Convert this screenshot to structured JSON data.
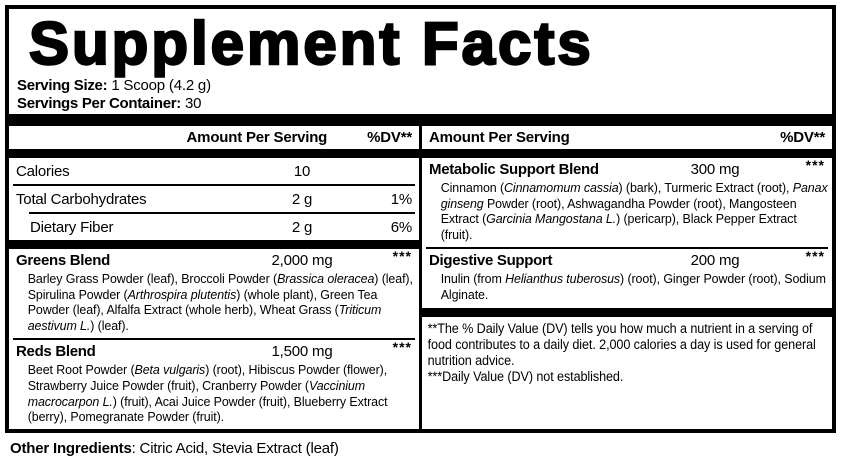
{
  "colors": {
    "ink": "#000000",
    "paper": "#ffffff"
  },
  "title": "Supplement Facts",
  "serving": {
    "size_label": "Serving Size:",
    "size_value": "1 Scoop (4.2 g)",
    "count_label": "Servings Per Container:",
    "count_value": "30"
  },
  "columns": {
    "left": {
      "header": {
        "amount": "Amount Per Serving",
        "dv": "%DV**"
      },
      "nutrients": [
        {
          "name": "Calories",
          "amount": "10",
          "dv": ""
        },
        {
          "name": "Total Carbohydrates",
          "amount": "2 g",
          "dv": "1%"
        },
        {
          "name": "Dietary Fiber",
          "amount": "2 g",
          "dv": "6%"
        }
      ],
      "blends": [
        {
          "name": "Greens Blend",
          "amount": "2,000 mg",
          "dv": "***",
          "ingredients": [
            {
              "text": "Barley Grass Powder (leaf), Broccoli Powder ("
            },
            {
              "text": "Brassica oleracea",
              "italic": true
            },
            {
              "text": ") (leaf), Spirulina Powder ("
            },
            {
              "text": "Arthrospira plutentis",
              "italic": true
            },
            {
              "text": ") (whole plant), Green Tea Powder (leaf), Alfalfa Extract (whole herb), Wheat Grass ("
            },
            {
              "text": "Triticum aestivum L.",
              "italic": true
            },
            {
              "text": ") (leaf)."
            }
          ]
        },
        {
          "name": "Reds Blend",
          "amount": "1,500 mg",
          "dv": "***",
          "ingredients": [
            {
              "text": "Beet Root Powder ("
            },
            {
              "text": "Beta vulgaris",
              "italic": true
            },
            {
              "text": ") (root), Hibiscus Powder (flower), Strawberry Juice Powder (fruit), Cranberry Powder ("
            },
            {
              "text": "Vaccinium macrocarpon L.",
              "italic": true
            },
            {
              "text": ") (fruit), Acai Juice Powder (fruit), Blueberry Extract (berry), Pomegranate Powder (fruit)."
            }
          ]
        }
      ]
    },
    "right": {
      "header": {
        "amount": "Amount Per Serving",
        "dv": "%DV**"
      },
      "blends": [
        {
          "name": "Metabolic Support Blend",
          "amount": "300 mg",
          "dv": "***",
          "ingredients": [
            {
              "text": "Cinnamon ("
            },
            {
              "text": "Cinnamomum cassia",
              "italic": true
            },
            {
              "text": ") (bark), Turmeric Extract (root), "
            },
            {
              "text": "Panax ginseng",
              "italic": true
            },
            {
              "text": " Powder (root), Ashwagandha Powder (root), Mangosteen Extract ("
            },
            {
              "text": "Garcinia Mangostana L.",
              "italic": true
            },
            {
              "text": ") (pericarp), Black Pepper Extract (fruit)."
            }
          ]
        },
        {
          "name": "Digestive Support",
          "amount": "200 mg",
          "dv": "***",
          "ingredients": [
            {
              "text": "Inulin (from "
            },
            {
              "text": "Helianthus tuberosus",
              "italic": true
            },
            {
              "text": ") (root), Ginger Powder (root), Sodium Alginate."
            }
          ]
        }
      ],
      "footnotes": [
        "**The % Daily Value (DV) tells you how much a nutrient in a serving of food contributes to a daily diet. 2,000 calories a day is used for general nutrition advice.",
        "***Daily Value (DV) not established."
      ]
    }
  },
  "other_ingredients": {
    "label": "Other Ingredients",
    "value": ": Citric Acid, Stevia Extract (leaf)"
  }
}
